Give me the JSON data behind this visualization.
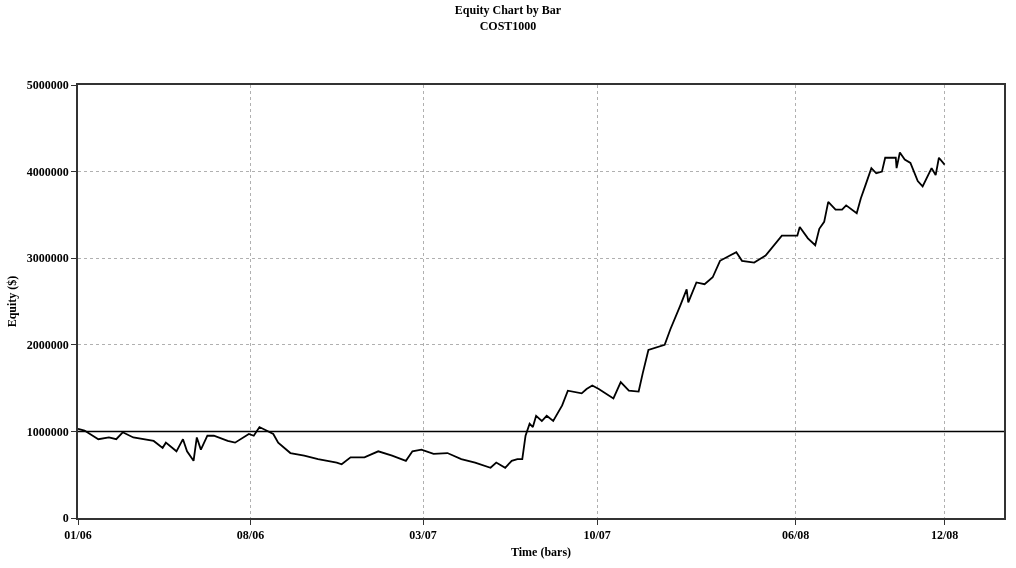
{
  "chart_data": {
    "type": "line",
    "title": "Equity Chart by Bar",
    "subtitle": "COST1000",
    "xlabel": "Time (bars)",
    "ylabel": "Equity ($)",
    "x": [
      "2006-01-01",
      "2006-01-09",
      "2006-01-26",
      "2006-02-08",
      "2006-02-17",
      "2006-02-25",
      "2006-03-10",
      "2006-04-04",
      "2006-04-15",
      "2006-04-19",
      "2006-05-02",
      "2006-05-10",
      "2006-05-15",
      "2006-05-23",
      "2006-05-27",
      "2006-06-01",
      "2006-06-09",
      "2006-06-17",
      "2006-07-04",
      "2006-07-13",
      "2006-07-30",
      "2006-08-05",
      "2006-08-12",
      "2006-08-29",
      "2006-09-04",
      "2006-09-19",
      "2006-10-06",
      "2006-10-23",
      "2006-11-15",
      "2006-11-21",
      "2006-12-02",
      "2006-12-19",
      "2007-01-05",
      "2007-01-22",
      "2007-02-08",
      "2007-02-16",
      "2007-02-27",
      "2007-03-14",
      "2007-03-31",
      "2007-04-17",
      "2007-05-04",
      "2007-05-23",
      "2007-05-30",
      "2007-06-10",
      "2007-06-18",
      "2007-06-25",
      "2007-07-01",
      "2007-07-05",
      "2007-07-10",
      "2007-07-14",
      "2007-07-18",
      "2007-07-25",
      "2007-07-31",
      "2007-08-08",
      "2007-08-19",
      "2007-08-26",
      "2007-09-12",
      "2007-09-18",
      "2007-09-25",
      "2007-10-03",
      "2007-10-21",
      "2007-10-30",
      "2007-11-09",
      "2007-11-21",
      "2007-11-26",
      "2007-12-03",
      "2007-12-23",
      "2007-12-30",
      "2008-01-11",
      "2008-01-19",
      "2008-01-21",
      "2008-01-31",
      "2008-02-10",
      "2008-02-20",
      "2008-02-29",
      "2008-03-20",
      "2008-03-27",
      "2008-04-11",
      "2008-04-25",
      "2008-05-15",
      "2008-06-03",
      "2008-06-06",
      "2008-06-16",
      "2008-06-25",
      "2008-06-30",
      "2008-07-06",
      "2008-07-11",
      "2008-07-20",
      "2008-07-28",
      "2008-08-02",
      "2008-08-15",
      "2008-08-20",
      "2008-08-26",
      "2008-09-02",
      "2008-09-08",
      "2008-09-15",
      "2008-09-19",
      "2008-10-02",
      "2008-10-03",
      "2008-10-07",
      "2008-10-13",
      "2008-10-20",
      "2008-10-29",
      "2008-11-04",
      "2008-11-15",
      "2008-11-20",
      "2008-11-24",
      "2008-12-01"
    ],
    "series": [
      {
        "color": "#000000",
        "values": [
          1030000,
          1010000,
          910000,
          930000,
          910000,
          990000,
          930000,
          890000,
          810000,
          870000,
          770000,
          910000,
          770000,
          660000,
          930000,
          790000,
          950000,
          950000,
          890000,
          870000,
          970000,
          950000,
          1050000,
          970000,
          870000,
          750000,
          720000,
          680000,
          640000,
          620000,
          700000,
          700000,
          770000,
          720000,
          660000,
          770000,
          790000,
          740000,
          750000,
          680000,
          640000,
          580000,
          640000,
          580000,
          660000,
          680000,
          680000,
          950000,
          1090000,
          1050000,
          1180000,
          1120000,
          1180000,
          1120000,
          1300000,
          1470000,
          1440000,
          1490000,
          1530000,
          1490000,
          1380000,
          1570000,
          1470000,
          1460000,
          1670000,
          1940000,
          2000000,
          2180000,
          2450000,
          2640000,
          2490000,
          2720000,
          2700000,
          2780000,
          2970000,
          3070000,
          2970000,
          2950000,
          3030000,
          3260000,
          3260000,
          3360000,
          3230000,
          3150000,
          3340000,
          3420000,
          3650000,
          3560000,
          3560000,
          3610000,
          3520000,
          3690000,
          3850000,
          4040000,
          3980000,
          4000000,
          4160000,
          4160000,
          4040000,
          4220000,
          4140000,
          4100000,
          3890000,
          3830000,
          4040000,
          3960000,
          4160000,
          4080000
        ]
      }
    ],
    "xlim": [
      "2006-01-01",
      "2009-02-12"
    ],
    "xticks": [
      {
        "value": "2006-01",
        "label": "01/06"
      },
      {
        "value": "2006-08",
        "label": "08/06"
      },
      {
        "value": "2007-03",
        "label": "03/07"
      },
      {
        "value": "2007-10",
        "label": "10/07"
      },
      {
        "value": "2008-06",
        "label": "06/08"
      },
      {
        "value": "2008-12",
        "label": "12/08"
      }
    ],
    "ylim": [
      0,
      5000000
    ],
    "yticks": [
      0,
      1000000,
      2000000,
      3000000,
      4000000,
      5000000
    ],
    "ref_lines": [
      {
        "axis": "y",
        "value": 1000000,
        "color": "#000000",
        "line_style": "solid"
      }
    ],
    "grid": true,
    "marker": "none",
    "line_style": "solid"
  }
}
